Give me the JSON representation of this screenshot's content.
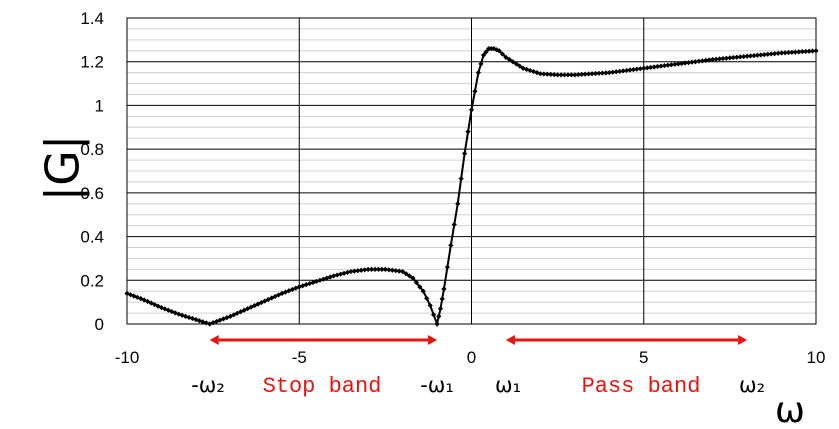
{
  "colors": {
    "curve": "#000000",
    "band_arrow": "#e8140f",
    "grid_major": "#000000",
    "grid_minor": "#d0d0d0"
  },
  "chart_data": {
    "type": "scatter",
    "title": "",
    "xlabel": "ω",
    "ylabel": "|G|",
    "xlim": [
      -10,
      10
    ],
    "ylim": [
      0,
      1.4
    ],
    "x_ticks": [
      "-10",
      "-5",
      "0",
      "5",
      "10"
    ],
    "y_ticks": [
      "0",
      "0.2",
      "0.4",
      "0.6",
      "0.8",
      "1",
      "1.2",
      "1.4"
    ],
    "grid": true,
    "series": [
      {
        "x": [
          -10,
          -9.5,
          -9,
          -8.5,
          -8,
          -7.6,
          -7,
          -6.5,
          -6,
          -5.5,
          -5,
          -4.5,
          -4,
          -3.5,
          -3,
          -2.5,
          -2,
          -1.7,
          -1.4,
          -1.2,
          -1.0,
          -0.9,
          -0.8,
          -0.6,
          -0.4,
          -0.2,
          0,
          0.2,
          0.35,
          0.5,
          0.65,
          0.8,
          1.0,
          1.5,
          2,
          2.5,
          3,
          3.5,
          4,
          5,
          6,
          7,
          8,
          9,
          10
        ],
        "y": [
          0.14,
          0.11,
          0.075,
          0.045,
          0.02,
          0.0,
          0.035,
          0.07,
          0.105,
          0.14,
          0.17,
          0.195,
          0.22,
          0.24,
          0.25,
          0.25,
          0.24,
          0.21,
          0.15,
          0.085,
          0.0,
          0.07,
          0.16,
          0.36,
          0.55,
          0.78,
          0.98,
          1.15,
          1.23,
          1.26,
          1.26,
          1.25,
          1.22,
          1.17,
          1.145,
          1.14,
          1.14,
          1.145,
          1.15,
          1.17,
          1.19,
          1.21,
          1.225,
          1.24,
          1.25
        ]
      }
    ],
    "annotations": {
      "neg_omega2": "-ω₂",
      "neg_omega1": "-ω₁",
      "omega1": "ω₁",
      "omega2": "ω₂",
      "stop_band": "Stop band",
      "pass_band": "Pass band"
    },
    "stop_band_range": [
      -7.6,
      -1.0
    ],
    "pass_band_range": [
      1.0,
      8.0
    ]
  }
}
